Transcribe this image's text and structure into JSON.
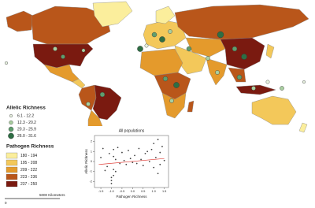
{
  "legend": {
    "allelic": {
      "title": "Allelic Richness",
      "items": [
        {
          "label": "6.1 - 12.2",
          "color": "#e8f2e0"
        },
        {
          "label": "12.3 - 20.2",
          "color": "#a9cfa0"
        },
        {
          "label": "20.3 - 25.9",
          "color": "#5f9e6e"
        },
        {
          "label": "26.0 - 31.6",
          "color": "#2e6e44"
        }
      ]
    },
    "pathogen": {
      "title": "Pathogen Richness",
      "items": [
        {
          "label": "180 - 194",
          "color": "#fbee9c"
        },
        {
          "label": "195 - 208",
          "color": "#f3c85a"
        },
        {
          "label": "209 - 222",
          "color": "#e49a2c"
        },
        {
          "label": "223 - 236",
          "color": "#b9561a"
        },
        {
          "label": "237 - 250",
          "color": "#7a1a10"
        }
      ]
    }
  },
  "scale_bar": {
    "start": "0",
    "end": "5000 Kilometers"
  },
  "chart_data": {
    "type": "scatter",
    "title": "All populations",
    "x_label": "Pathogen Richness",
    "y_label": "Allelic Richness",
    "x": [
      -1.5,
      -1.4,
      -1.2,
      -1.1,
      -1.0,
      -1.0,
      -0.9,
      -0.9,
      -0.8,
      -0.8,
      -0.7,
      -0.6,
      -0.5,
      -0.4,
      -0.3,
      -0.2,
      -0.1,
      0.0,
      0.1,
      0.2,
      0.3,
      0.4,
      0.5,
      0.6,
      0.7,
      0.8,
      1.0,
      1.0,
      1.1,
      1.2,
      1.2,
      1.3,
      1.3,
      1.4,
      1.5,
      -1.0,
      -0.9,
      -0.9,
      -1.3,
      0.9
    ],
    "y": [
      0.4,
      1.3,
      -0.5,
      0.8,
      -1.6,
      -2.2,
      1.2,
      -0.8,
      0.2,
      -1.0,
      1.4,
      -0.2,
      0.9,
      0.1,
      -0.3,
      1.1,
      0.3,
      -0.1,
      0.6,
      -0.2,
      1.3,
      0.2,
      -0.4,
      0.8,
      1.0,
      0.0,
      1.8,
      -0.6,
      0.4,
      2.2,
      -1.2,
      0.9,
      -0.3,
      1.5,
      0.1,
      -1.9,
      -1.4,
      0.5,
      -0.9,
      1.2
    ],
    "color": "#444444",
    "trend": {
      "x": [
        -1.6,
        1.5
      ],
      "y": [
        -0.3,
        0.3
      ],
      "color": "#e0403a"
    },
    "xlim": [
      -1.8,
      1.7
    ],
    "ylim": [
      -2.6,
      2.6
    ],
    "xticks": [
      -1.5,
      {
        "value": -1,
        "label": "-1.0"
      },
      -0.5,
      {
        "value": 0,
        "label": "0.0"
      },
      0.5,
      {
        "value": 1,
        "label": "1.0"
      },
      1.5
    ],
    "yticks": [
      -2,
      -1,
      0,
      1,
      2
    ]
  }
}
